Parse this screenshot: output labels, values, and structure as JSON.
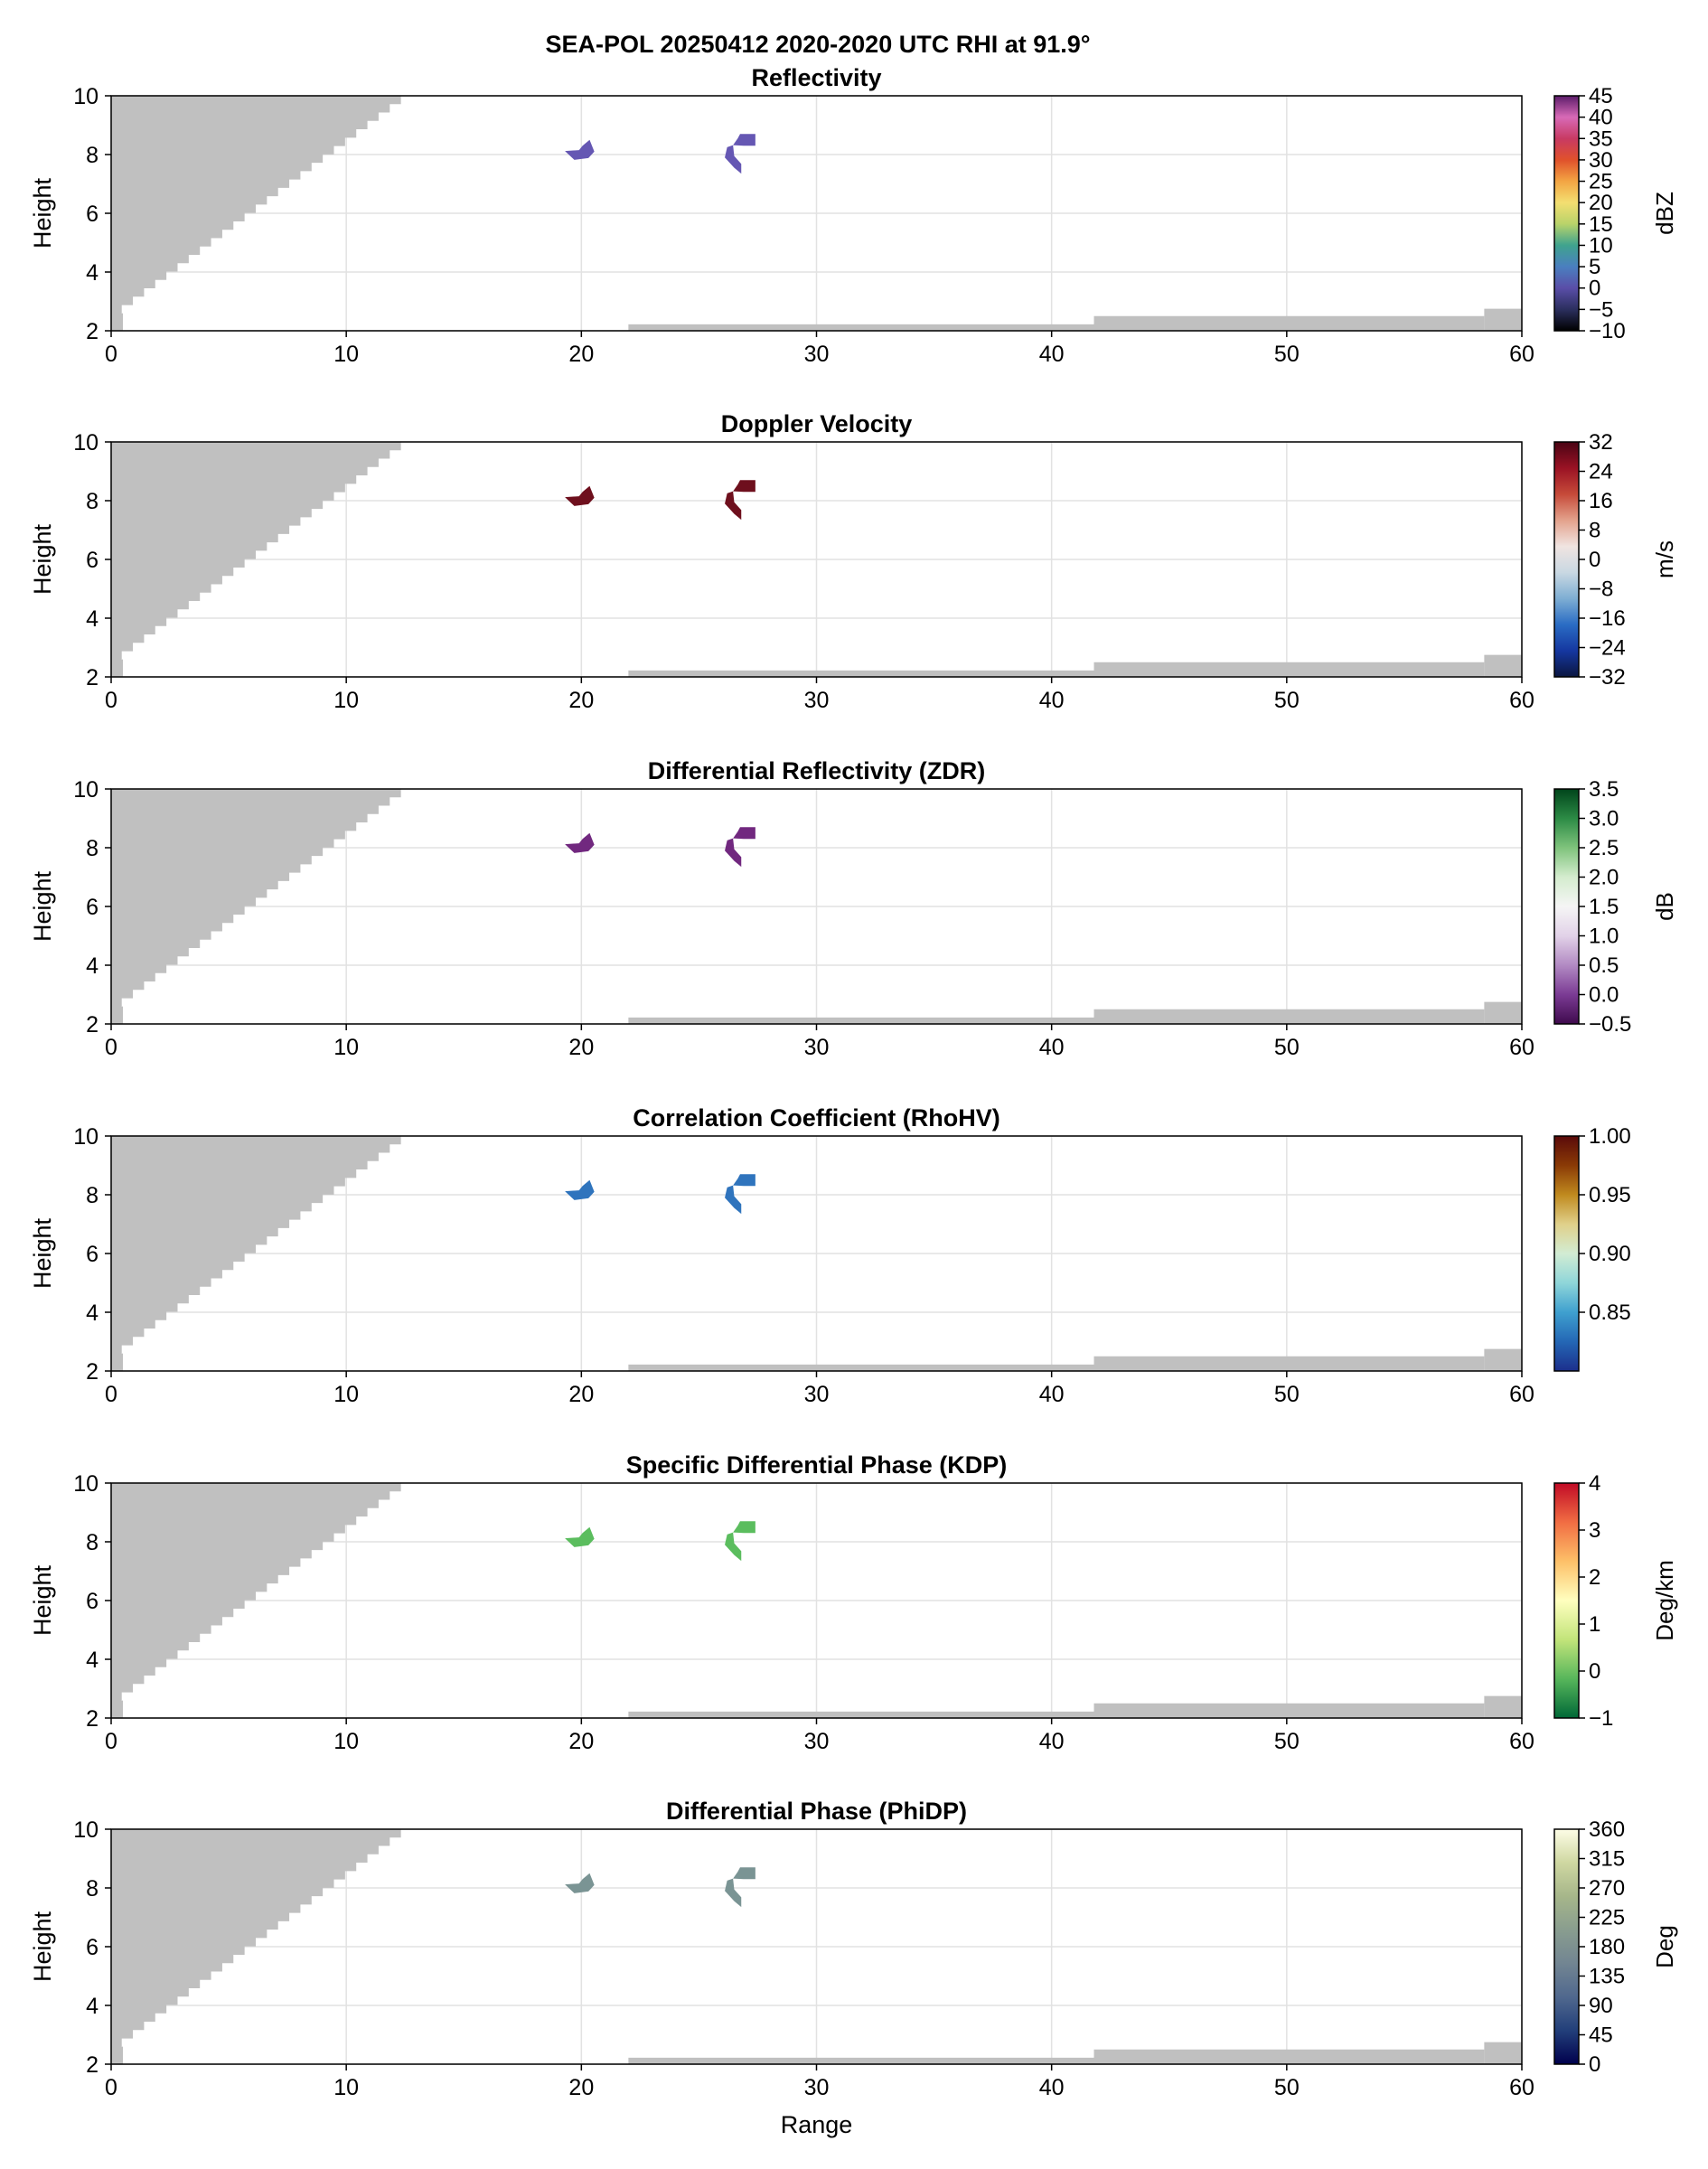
{
  "suptitle": "SEA-POL 20250412 2020-2020 UTC RHI at 91.9°",
  "chart_data": [
    {
      "type": "heatmap",
      "title": "Reflectivity",
      "xlabel": "",
      "ylabel": "Height",
      "xlim": [
        0,
        60
      ],
      "ylim": [
        2,
        10
      ],
      "xticks": [
        "0",
        "10",
        "20",
        "30",
        "40",
        "50",
        "60"
      ],
      "yticks": [
        "2",
        "4",
        "6",
        "8",
        "10"
      ],
      "grid": true,
      "colorbar": {
        "label": "dBZ",
        "min": -10,
        "max": 45,
        "ticks": [
          "−10",
          "−5",
          "0",
          "5",
          "10",
          "15",
          "20",
          "25",
          "30",
          "35",
          "40",
          "45"
        ],
        "tick_values": [
          -10,
          -5,
          0,
          5,
          10,
          15,
          20,
          25,
          30,
          35,
          40,
          45
        ],
        "colors": [
          "#000000",
          "#2b2f5e",
          "#5a4ea8",
          "#4a7fc0",
          "#3fa38e",
          "#b9d36a",
          "#f3df71",
          "#f3a543",
          "#e0512b",
          "#c83a63",
          "#d86ab7",
          "#5b1c6a"
        ]
      },
      "echo_color": "#6557b3"
    },
    {
      "type": "heatmap",
      "title": "Doppler Velocity",
      "xlabel": "",
      "ylabel": "Height",
      "xlim": [
        0,
        60
      ],
      "ylim": [
        2,
        10
      ],
      "xticks": [
        "0",
        "10",
        "20",
        "30",
        "40",
        "50",
        "60"
      ],
      "yticks": [
        "2",
        "4",
        "6",
        "8",
        "10"
      ],
      "grid": true,
      "colorbar": {
        "label": "m/s",
        "min": -32,
        "max": 32,
        "ticks": [
          "−32",
          "−24",
          "−16",
          "−8",
          "0",
          "8",
          "16",
          "24",
          "32"
        ],
        "tick_values": [
          -32,
          -24,
          -16,
          -8,
          0,
          8,
          16,
          24,
          32
        ],
        "colors": [
          "#0b1640",
          "#1537a0",
          "#2a6cc4",
          "#7eaed3",
          "#c9d8e2",
          "#f0e4e1",
          "#e3a28c",
          "#c64a39",
          "#9a1224",
          "#4a0414"
        ]
      },
      "echo_color": "#6e0f1d"
    },
    {
      "type": "heatmap",
      "title": "Differential Reflectivity (ZDR)",
      "xlabel": "",
      "ylabel": "Height",
      "xlim": [
        0,
        60
      ],
      "ylim": [
        2,
        10
      ],
      "xticks": [
        "0",
        "10",
        "20",
        "30",
        "40",
        "50",
        "60"
      ],
      "yticks": [
        "2",
        "4",
        "6",
        "8",
        "10"
      ],
      "grid": true,
      "colorbar": {
        "label": "dB",
        "min": -0.5,
        "max": 3.5,
        "ticks": [
          "−0.5",
          "0.0",
          "0.5",
          "1.0",
          "1.5",
          "2.0",
          "2.5",
          "3.0",
          "3.5"
        ],
        "tick_values": [
          -0.5,
          0.0,
          0.5,
          1.0,
          1.5,
          2.0,
          2.5,
          3.0,
          3.5
        ],
        "colors": [
          "#3f0a4d",
          "#7b3b94",
          "#b28ac3",
          "#e2d2e8",
          "#f5f5f5",
          "#d4ecce",
          "#7fc37c",
          "#2c8b45",
          "#00441b"
        ]
      },
      "echo_color": "#71287f"
    },
    {
      "type": "heatmap",
      "title": "Correlation Coefficient (RhoHV)",
      "xlabel": "",
      "ylabel": "Height",
      "xlim": [
        0,
        60
      ],
      "ylim": [
        2,
        10
      ],
      "xticks": [
        "0",
        "10",
        "20",
        "30",
        "40",
        "50",
        "60"
      ],
      "yticks": [
        "2",
        "4",
        "6",
        "8",
        "10"
      ],
      "grid": true,
      "colorbar": {
        "label": "",
        "min": 0.8,
        "max": 1.0,
        "ticks": [
          "0.85",
          "0.90",
          "0.95",
          "1.00"
        ],
        "tick_values": [
          0.85,
          0.9,
          0.95,
          1.0
        ],
        "colors": [
          "#1c2f8c",
          "#2467b5",
          "#3fa0cf",
          "#8fd6d9",
          "#d2ecd3",
          "#e0d08a",
          "#c08a1e",
          "#8a3a06",
          "#5a0a0a"
        ]
      },
      "echo_color": "#2f74bd"
    },
    {
      "type": "heatmap",
      "title": "Specific Differential Phase (KDP)",
      "xlabel": "",
      "ylabel": "Height",
      "xlim": [
        0,
        60
      ],
      "ylim": [
        2,
        10
      ],
      "xticks": [
        "0",
        "10",
        "20",
        "30",
        "40",
        "50",
        "60"
      ],
      "yticks": [
        "2",
        "4",
        "6",
        "8",
        "10"
      ],
      "grid": true,
      "colorbar": {
        "label": "Deg/km",
        "min": -1,
        "max": 4,
        "ticks": [
          "−1",
          "0",
          "1",
          "2",
          "3",
          "4"
        ],
        "tick_values": [
          -1,
          0,
          1,
          2,
          3,
          4
        ],
        "colors": [
          "#006837",
          "#57b65b",
          "#c2e47a",
          "#ffffbf",
          "#fdc068",
          "#f16d43",
          "#c10a26"
        ]
      },
      "echo_color": "#5bbd5e"
    },
    {
      "type": "heatmap",
      "title": "Differential Phase (PhiDP)",
      "xlabel": "Range",
      "ylabel": "Height",
      "xlim": [
        0,
        60
      ],
      "ylim": [
        2,
        10
      ],
      "xticks": [
        "0",
        "10",
        "20",
        "30",
        "40",
        "50",
        "60"
      ],
      "yticks": [
        "2",
        "4",
        "6",
        "8",
        "10"
      ],
      "grid": true,
      "colorbar": {
        "label": "Deg",
        "min": 0,
        "max": 360,
        "ticks": [
          "0",
          "45",
          "90",
          "135",
          "180",
          "225",
          "270",
          "315",
          "360"
        ],
        "tick_values": [
          0,
          45,
          90,
          135,
          180,
          225,
          270,
          315,
          360
        ],
        "colors": [
          "#00004d",
          "#223f7a",
          "#50688e",
          "#728592",
          "#899d8f",
          "#a6b68a",
          "#cfd7a1",
          "#fdfde6"
        ]
      },
      "echo_color": "#7a9494"
    }
  ],
  "colors": {
    "no_data_gray": "#c0c0c0",
    "grid": "#e2e2e2",
    "frame": "#000000"
  }
}
